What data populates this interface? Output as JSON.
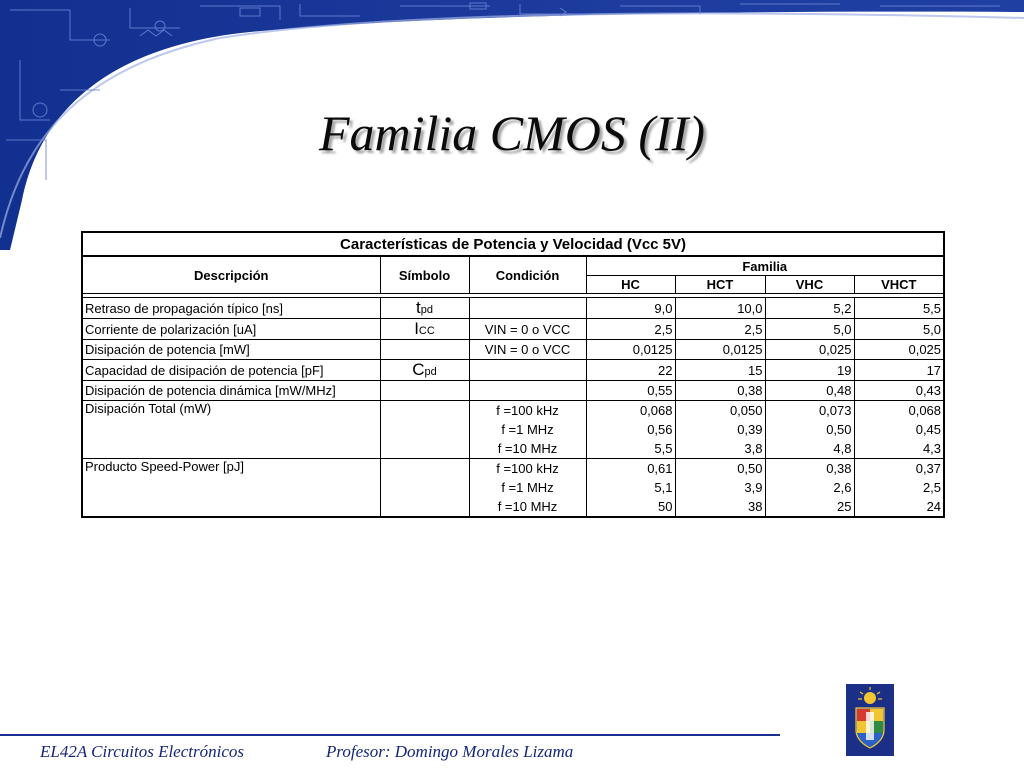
{
  "slide": {
    "title": "Familia CMOS (II)",
    "table": {
      "caption": "Características de Potencia y Velocidad (Vcc 5V)",
      "headers": {
        "descripcion": "Descripción",
        "simbolo": "Símbolo",
        "condicion": "Condición",
        "familia": "Familia",
        "families": [
          "HC",
          "HCT",
          "VHC",
          "VHCT"
        ]
      },
      "rows": [
        {
          "desc": "Retraso de propagación típico [ns]",
          "sym_main": "t",
          "sym_sub": "pd",
          "cond": "",
          "values": [
            "9,0",
            "10,0",
            "5,2",
            "5,5"
          ]
        },
        {
          "desc": "Corriente de polarización [uA]",
          "sym_main": "I",
          "sym_sub": "CC",
          "cond": "VIN = 0 o VCC",
          "values": [
            "2,5",
            "2,5",
            "5,0",
            "5,0"
          ]
        },
        {
          "desc": "Disipación de potencia [mW]",
          "sym_main": "",
          "sym_sub": "",
          "cond": "VIN = 0 o VCC",
          "values": [
            "0,0125",
            "0,0125",
            "0,025",
            "0,025"
          ]
        },
        {
          "desc": "Capacidad de disipación de potencia [pF]",
          "sym_main": "C",
          "sym_sub": "pd",
          "cond": "",
          "values": [
            "22",
            "15",
            "19",
            "17"
          ]
        },
        {
          "desc": "Disipación de potencia dinámica [mW/MHz]",
          "sym_main": "",
          "sym_sub": "",
          "cond": "",
          "values": [
            "0,55",
            "0,38",
            "0,48",
            "0,43"
          ]
        }
      ],
      "group_rows": [
        {
          "desc": "Disipación Total (mW)",
          "items": [
            {
              "cond": "f =100 kHz",
              "values": [
                "0,068",
                "0,050",
                "0,073",
                "0,068"
              ]
            },
            {
              "cond": "f =1 MHz",
              "values": [
                "0,56",
                "0,39",
                "0,50",
                "0,45"
              ]
            },
            {
              "cond": "f =10 MHz",
              "values": [
                "5,5",
                "3,8",
                "4,8",
                "4,3"
              ]
            }
          ]
        },
        {
          "desc": "Producto Speed-Power [pJ]",
          "items": [
            {
              "cond": "f =100 kHz",
              "values": [
                "0,61",
                "0,50",
                "0,38",
                "0,37"
              ]
            },
            {
              "cond": "f =1 MHz",
              "values": [
                "5,1",
                "3,9",
                "2,6",
                "2,5"
              ]
            },
            {
              "cond": "f =10 MHz",
              "values": [
                "50",
                "38",
                "25",
                "24"
              ]
            }
          ]
        }
      ]
    },
    "footer": {
      "course": "EL42A Circuitos Electrónicos",
      "professor": "Profesor: Domingo Morales Lizama"
    },
    "colors": {
      "banner": "#1c3a9a",
      "footer_text": "#15267a"
    }
  }
}
